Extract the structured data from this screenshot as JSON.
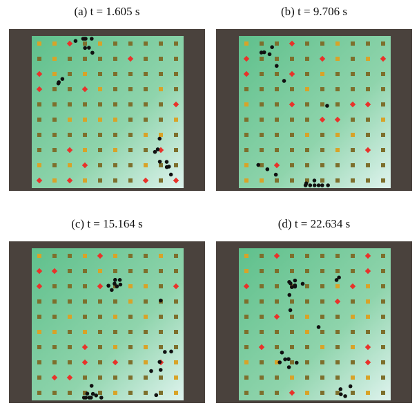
{
  "panels": [
    {
      "caption": "(a) t = 1.605 s"
    },
    {
      "caption": "(b) t = 9.706 s"
    },
    {
      "caption": "(c) t = 15.164 s"
    },
    {
      "caption": "(d) t = 22.634 s"
    }
  ]
}
